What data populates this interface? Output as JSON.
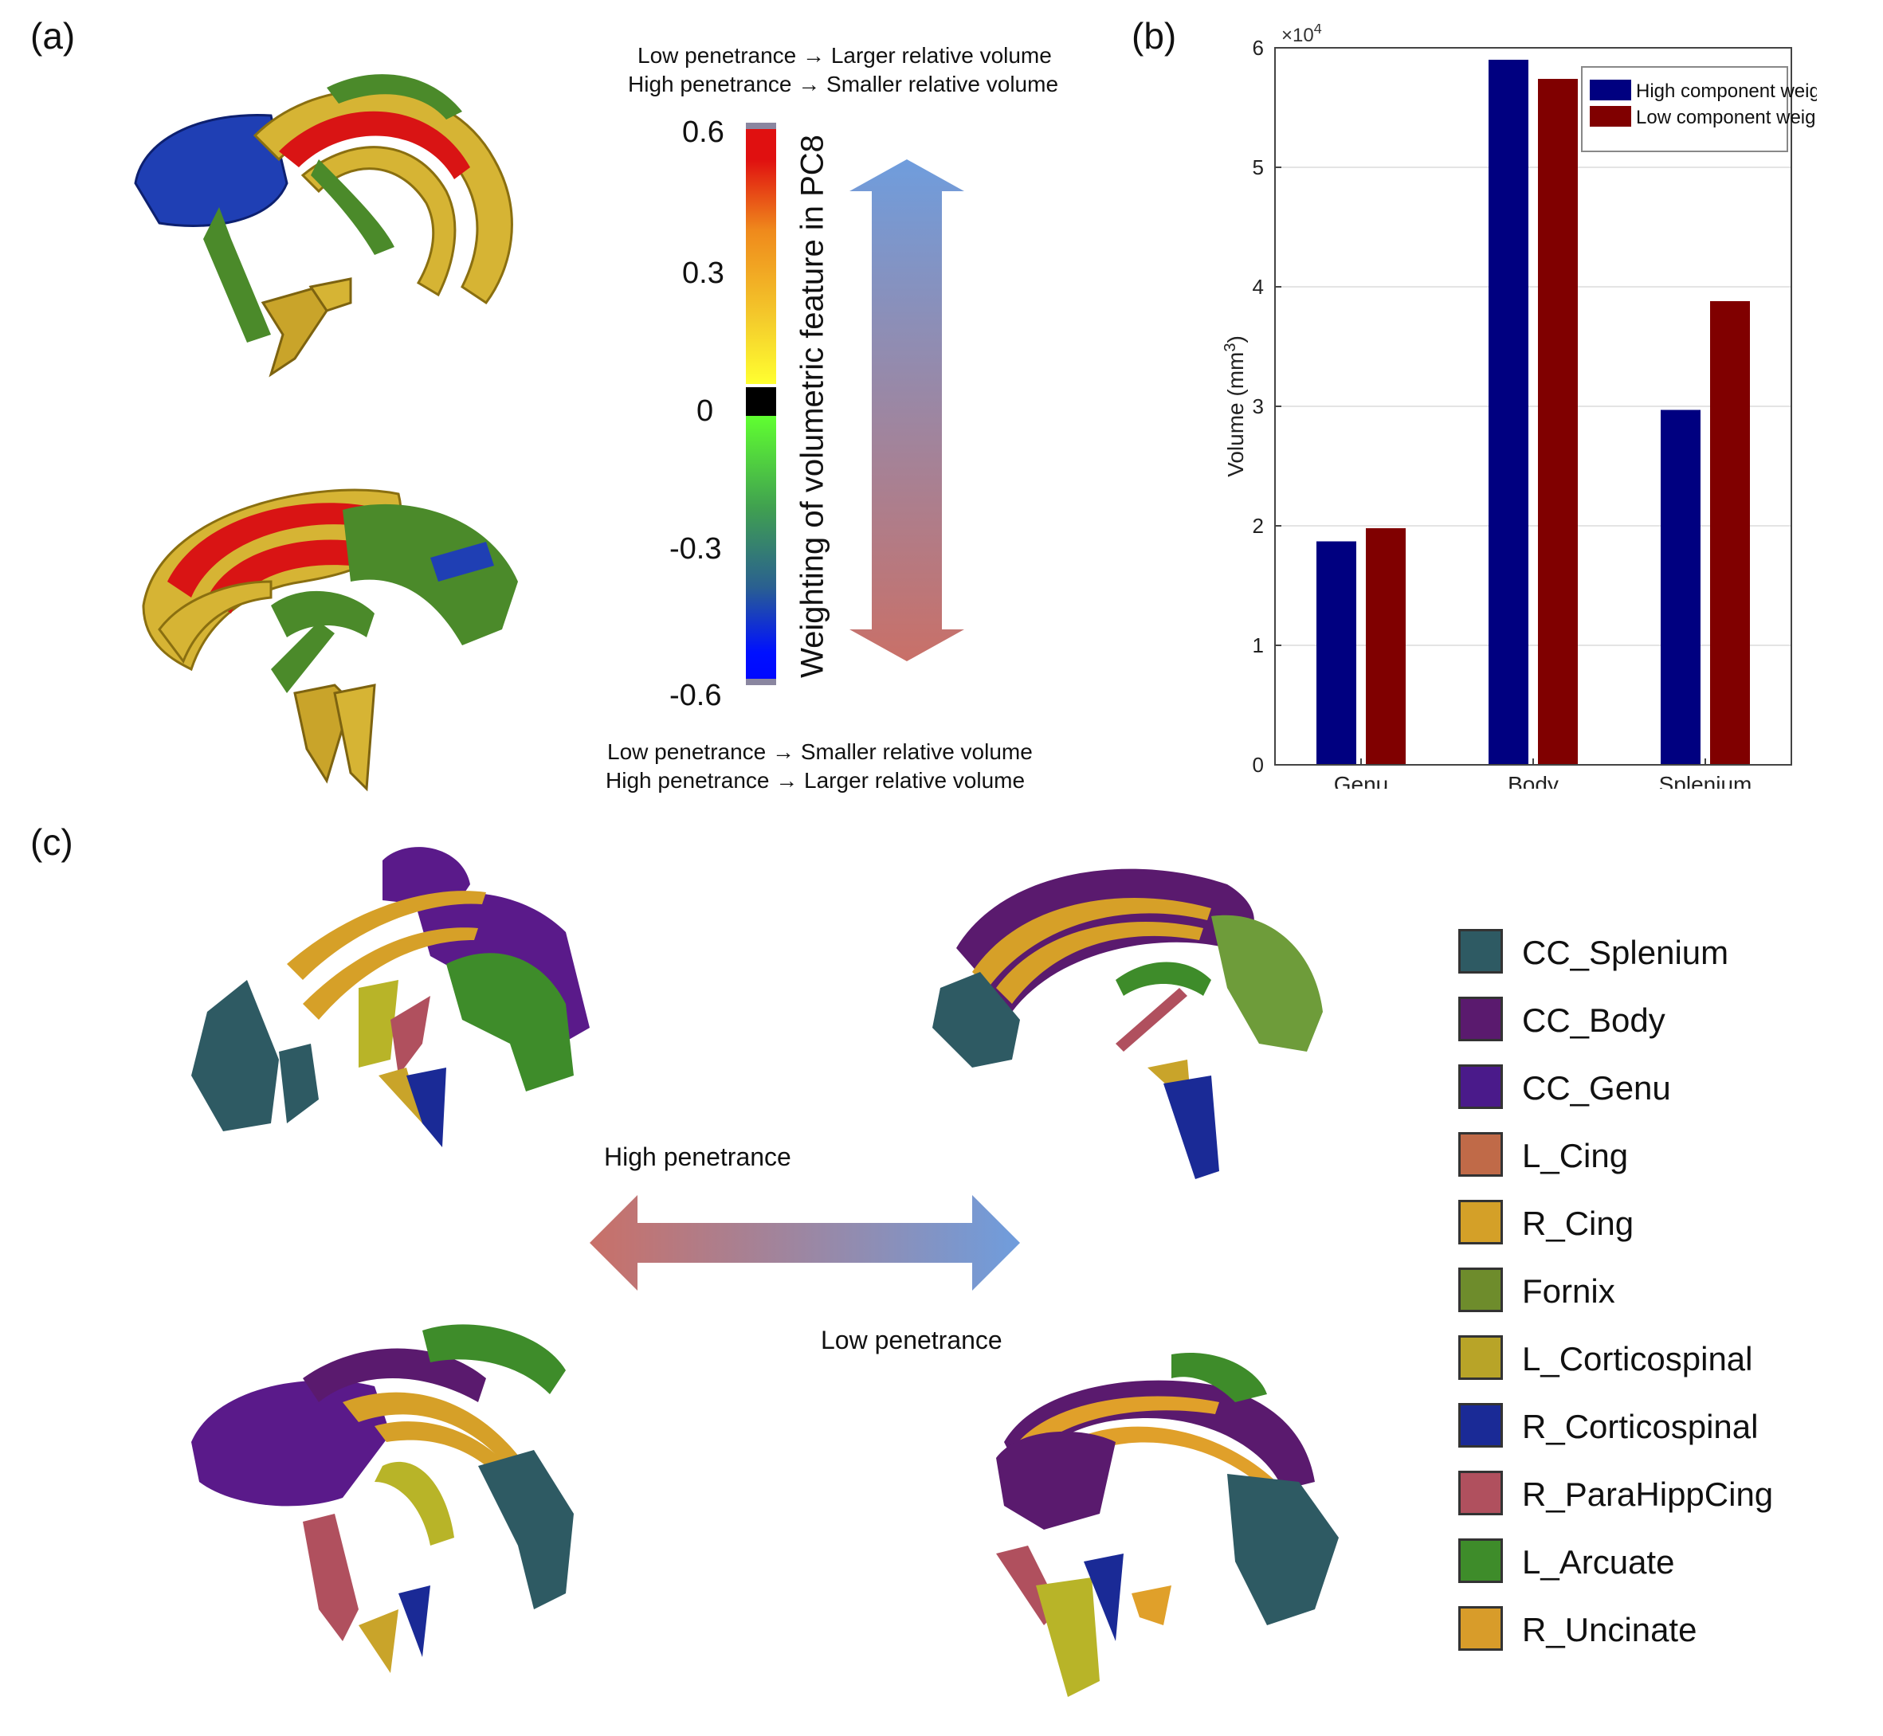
{
  "panel_labels": {
    "a": "(a)",
    "b": "(b)",
    "c": "(c)"
  },
  "panel_a": {
    "top_caption_line1": "Low penetrance → Larger relative volume",
    "top_caption_line2": "High penetrance →  Smaller relative volume",
    "bottom_caption_line1": "Low penetrance → Smaller relative volume",
    "bottom_caption_line2": "High penetrance →   Larger relative volume",
    "colorbar_title": "Weighting of volumetric feature in PC8",
    "colorbar_ticks": [
      "0.6",
      "0.3",
      "0",
      "-0.3",
      "-0.6"
    ],
    "colors": {
      "positive_top": "#e01010",
      "mid_positive": "#ffd000",
      "zero": "#000000",
      "negative_bottom": "#0010ff",
      "arrow_top": "#6f9ddd",
      "arrow_bottom": "#c97068"
    }
  },
  "panel_c": {
    "high_label": "High penetrance",
    "low_label": "Low penetrance",
    "legend": [
      {
        "label": "CC_Splenium",
        "color": "#2e5a63"
      },
      {
        "label": "CC_Body",
        "color": "#5a1a6e"
      },
      {
        "label": "CC_Genu",
        "color": "#4a1a8a"
      },
      {
        "label": "L_Cing",
        "color": "#c06a48"
      },
      {
        "label": "R_Cing",
        "color": "#d4a028"
      },
      {
        "label": "Fornix",
        "color": "#6e8c2c"
      },
      {
        "label": "L_Corticospinal",
        "color": "#b8a428"
      },
      {
        "label": "R_Corticospinal",
        "color": "#1a2a96"
      },
      {
        "label": "R_ParaHippCing",
        "color": "#b0505e"
      },
      {
        "label": "L_Arcuate",
        "color": "#3e8c2a"
      },
      {
        "label": "R_Uncinate",
        "color": "#d89c2a"
      }
    ]
  },
  "chart_data": {
    "type": "bar",
    "categories": [
      "Genu",
      "Body",
      "Splenium"
    ],
    "series": [
      {
        "name": "High component weight",
        "color": "#000080",
        "values": [
          18700,
          59000,
          29700
        ]
      },
      {
        "name": "Low component weight",
        "color": "#800000",
        "values": [
          19800,
          57400,
          38800
        ]
      }
    ],
    "ylabel": "Volume (mm",
    "ylabel_sup": "3",
    "ylabel_close": ")",
    "y_multiplier": "×10",
    "y_multiplier_exp": "4",
    "ylim": [
      0,
      60000
    ],
    "yticks": [
      "0",
      "1",
      "2",
      "3",
      "4",
      "5",
      "6"
    ],
    "legend_position": "top-right",
    "grid": true
  }
}
